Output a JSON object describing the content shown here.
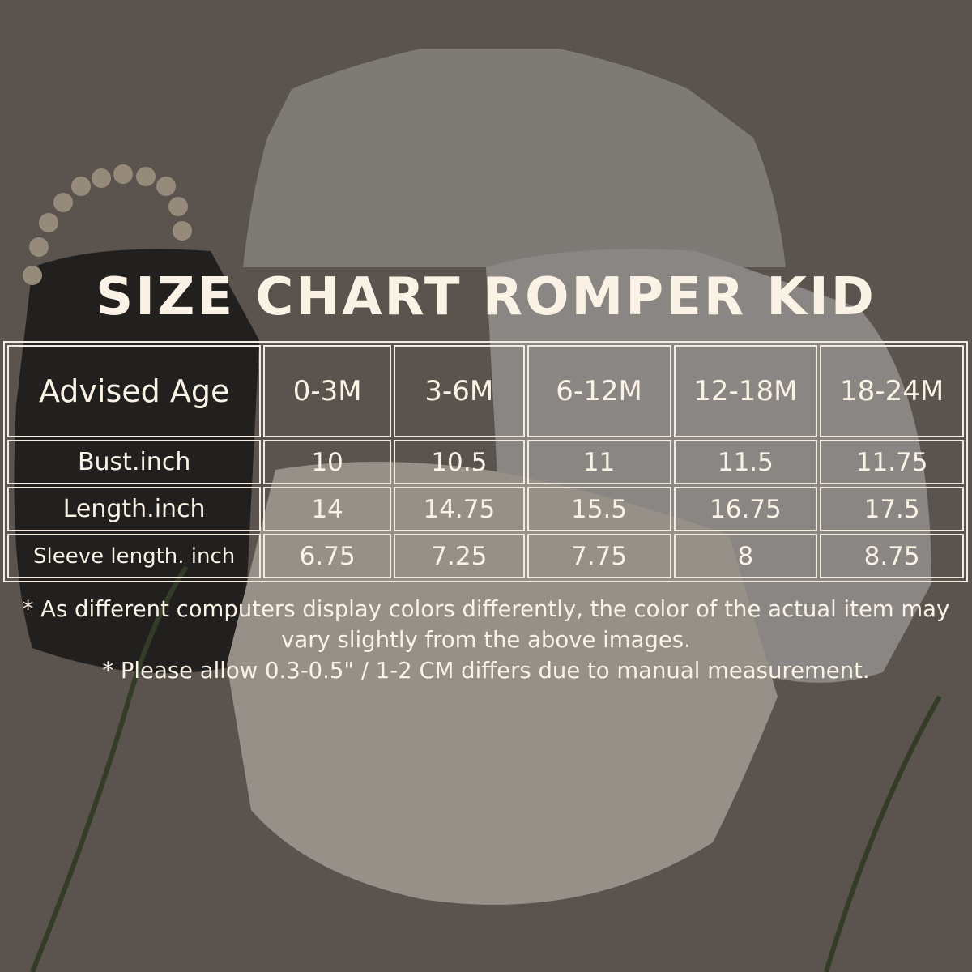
{
  "title": "SIZE CHART ROMPER KID",
  "table": {
    "header": [
      "Advised Age",
      "0-3M",
      "3-6M",
      "6-12M",
      "12-18M",
      "18-24M"
    ],
    "rows": [
      [
        "Bust.inch",
        "10",
        "10.5",
        "11",
        "11.5",
        "11.75"
      ],
      [
        "Length.inch",
        "14",
        "14.75",
        "15.5",
        "16.75",
        "17.5"
      ],
      [
        "Sleeve length. inch",
        "6.75",
        "7.25",
        "7.75",
        "8",
        "8.75"
      ]
    ]
  },
  "notes": [
    "* As different computers display colors differently, the color of the actual item may vary slightly from the above images.",
    "* Please allow 0.3-0.5\" / 1-2 CM differs due to manual measurement."
  ]
}
